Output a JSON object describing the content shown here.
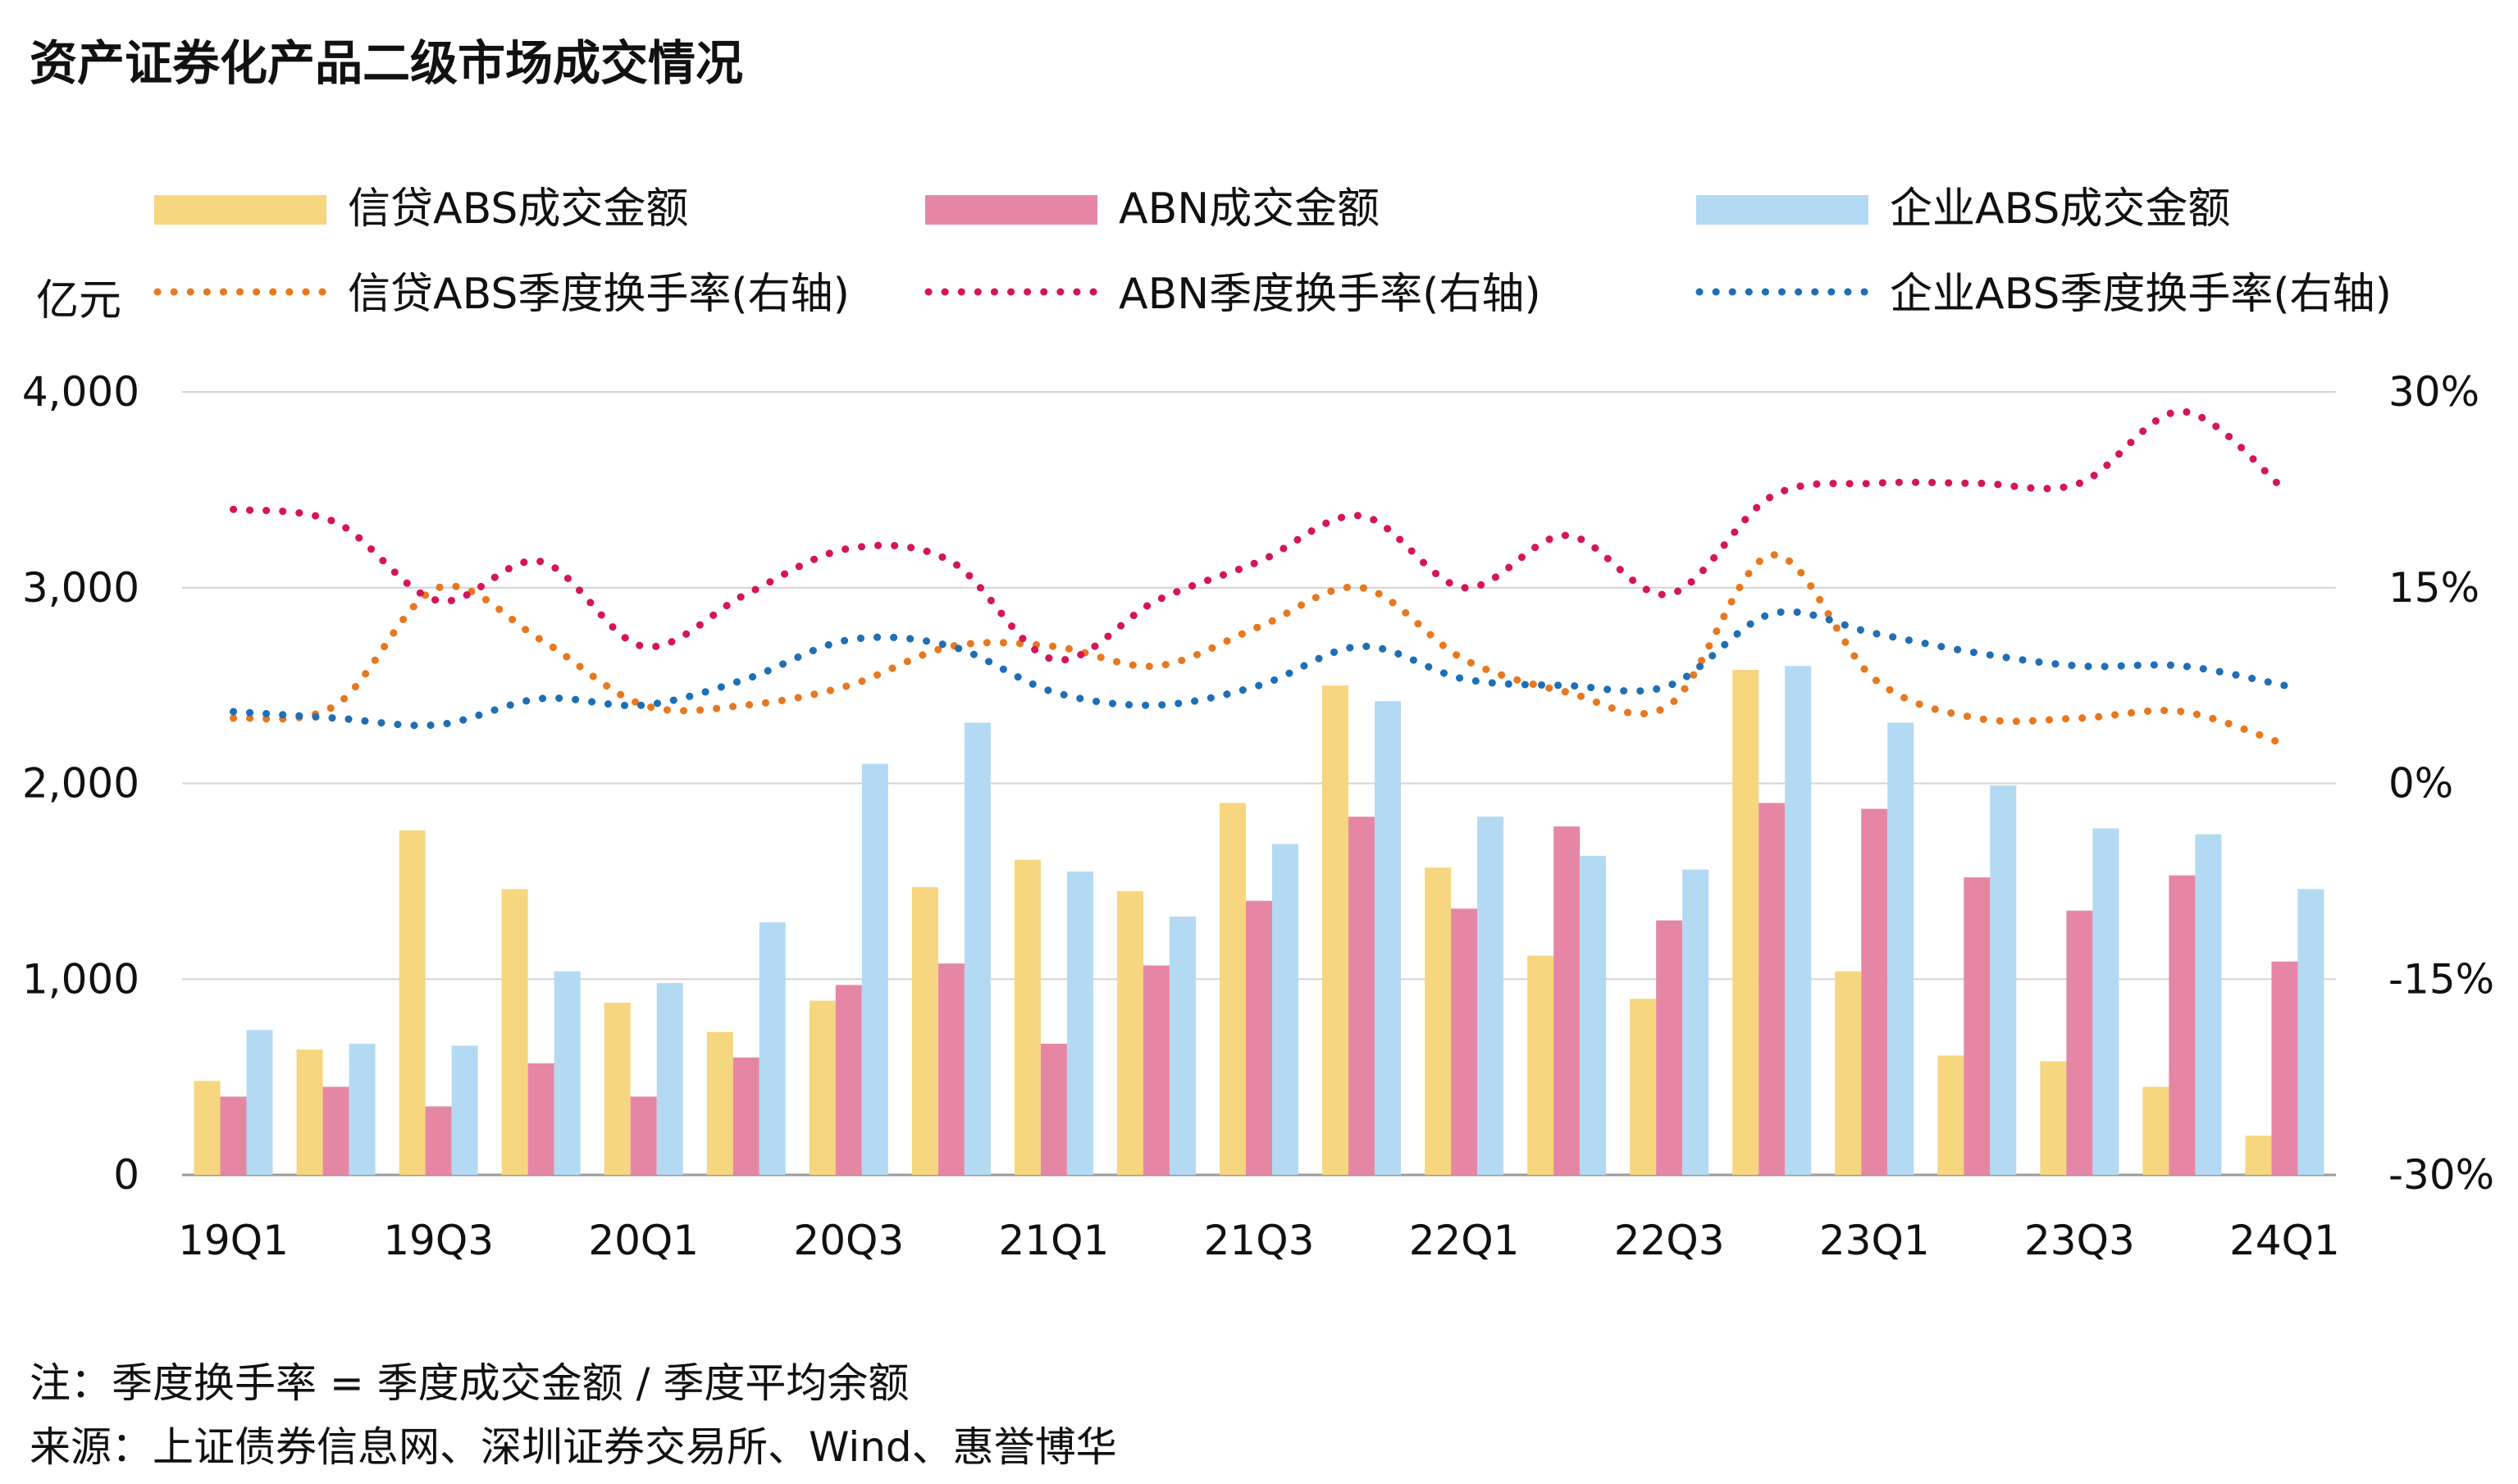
{
  "title": "资产证券化产品二级市场成交情况",
  "chart_data": {
    "type": "bar",
    "categories": [
      "19Q1",
      "19Q2",
      "19Q3",
      "19Q4",
      "20Q1",
      "20Q2",
      "20Q3",
      "20Q4",
      "21Q1",
      "21Q2",
      "21Q3",
      "21Q4",
      "22Q1",
      "22Q2",
      "22Q3",
      "22Q4",
      "23Q1",
      "23Q2",
      "23Q3",
      "23Q4",
      "24Q1"
    ],
    "x_tick_labels": [
      "19Q1",
      "",
      "19Q3",
      "",
      "20Q1",
      "",
      "20Q3",
      "",
      "21Q1",
      "",
      "21Q3",
      "",
      "22Q1",
      "",
      "22Q3",
      "",
      "23Q1",
      "",
      "23Q3",
      "",
      "24Q1"
    ],
    "left_axis": {
      "unit_label": "亿元",
      "range": [
        0,
        4000
      ],
      "ticks": [
        0,
        1000,
        2000,
        3000,
        4000
      ],
      "tick_labels": [
        "0",
        "1,000",
        "2,000",
        "3,000",
        "4,000"
      ]
    },
    "right_axis": {
      "range": [
        -30,
        30
      ],
      "ticks": [
        -30,
        -15,
        0,
        15,
        30
      ],
      "tick_labels": [
        "-30%",
        "-15%",
        "0%",
        "15%",
        "30%"
      ]
    },
    "grid": true,
    "bar_series": [
      {
        "name": "信贷ABS成交金额",
        "color": "#F6D67E",
        "values": [
          480,
          640,
          1760,
          1460,
          880,
          730,
          890,
          1470,
          1610,
          1450,
          1900,
          2500,
          1570,
          1120,
          900,
          2580,
          1040,
          610,
          580,
          450,
          200
        ]
      },
      {
        "name": "ABN成交金额",
        "color": "#E686A5",
        "values": [
          400,
          450,
          350,
          570,
          400,
          600,
          970,
          1080,
          670,
          1070,
          1400,
          1830,
          1360,
          1780,
          1300,
          1900,
          1870,
          1520,
          1350,
          1530,
          1090
        ]
      },
      {
        "name": "企业ABS成交金额",
        "color": "#B3DAF2",
        "values": [
          740,
          670,
          660,
          1040,
          980,
          1290,
          2100,
          2310,
          1550,
          1320,
          1690,
          2420,
          1830,
          1630,
          1560,
          2600,
          2310,
          1990,
          1770,
          1740,
          1460
        ]
      }
    ],
    "line_series": [
      {
        "name": "信贷ABS季度换手率(右轴)",
        "color": "#E8781E",
        "values": [
          5,
          6,
          15,
          11,
          6,
          6,
          7.5,
          10.5,
          10.5,
          9,
          12,
          15,
          9.5,
          7,
          6,
          17.5,
          8,
          5,
          5,
          5.5,
          3
        ]
      },
      {
        "name": "ABN季度换手率(右轴)",
        "color": "#D6145A",
        "values": [
          21,
          20,
          14,
          17,
          10.5,
          14.5,
          18,
          17,
          9.5,
          14,
          17,
          20.5,
          15,
          19,
          14.5,
          22,
          23,
          23,
          23,
          28.5,
          22.5
        ]
      },
      {
        "name": "企业ABS季度换手率(右轴)",
        "color": "#1E6FB5",
        "values": [
          5.5,
          5,
          4.5,
          6.5,
          6,
          8,
          11,
          10.5,
          7,
          6,
          7.5,
          10.5,
          8,
          7.5,
          7.5,
          13,
          11.5,
          10,
          9,
          9,
          7.5
        ]
      }
    ]
  },
  "notes": {
    "note": "注：季度换手率 = 季度成交金额 / 季度平均余额",
    "source": "来源：上证债券信息网、深圳证券交易所、Wind、惠誉博华"
  }
}
